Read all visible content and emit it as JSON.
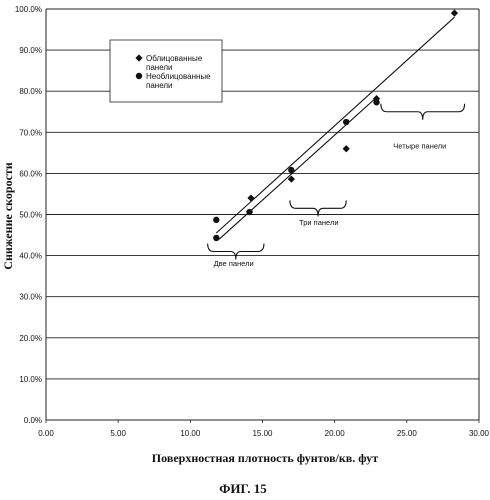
{
  "chart_data": {
    "type": "scatter",
    "xlabel": "Поверхностная плотность фунтов/кв. фут",
    "ylabel": "Снижение скорости",
    "xlim": [
      0,
      30
    ],
    "ylim": [
      0,
      100
    ],
    "x_ticks": [
      "0.00",
      "5.00",
      "10.00",
      "15.00",
      "20.00",
      "25.00",
      "30.00"
    ],
    "y_ticks": [
      "0.0%",
      "10.0%",
      "20.0%",
      "30.0%",
      "40.0%",
      "50.0%",
      "60.0%",
      "70.0%",
      "80.0%",
      "90.0%",
      "100.0%"
    ],
    "grid": "horizontal",
    "legend_position": "top-left",
    "series": [
      {
        "name": "Облицованные панели",
        "marker": "diamond",
        "points": [
          {
            "x": 14.2,
            "y": 54.0
          },
          {
            "x": 17.0,
            "y": 58.6
          },
          {
            "x": 20.8,
            "y": 66.0
          },
          {
            "x": 22.9,
            "y": 78.2
          },
          {
            "x": 28.3,
            "y": 99.0
          }
        ]
      },
      {
        "name": "Необлицованные панели",
        "marker": "circle",
        "points": [
          {
            "x": 11.8,
            "y": 48.7
          },
          {
            "x": 11.8,
            "y": 44.3
          },
          {
            "x": 14.1,
            "y": 50.6
          },
          {
            "x": 17.0,
            "y": 60.8
          },
          {
            "x": 20.8,
            "y": 72.5
          },
          {
            "x": 22.9,
            "y": 77.3
          }
        ]
      }
    ],
    "trendlines": [
      {
        "x": [
          11.8,
          28.3
        ],
        "y": [
          45.5,
          98.0
        ]
      },
      {
        "x": [
          12.0,
          22.9
        ],
        "y": [
          44.0,
          78.5
        ]
      }
    ],
    "annotations": [
      {
        "text": "Две панели",
        "x": 13.0,
        "y": 37.5
      },
      {
        "text": "Три панели",
        "x": 18.9,
        "y": 47.5
      },
      {
        "text": "Четыре панели",
        "x": 25.9,
        "y": 66.0
      }
    ],
    "brackets": [
      {
        "x1": 11.2,
        "x2": 15.1,
        "y": 41.0
      },
      {
        "x1": 16.9,
        "x2": 20.8,
        "y": 51.5
      },
      {
        "x1": 23.2,
        "x2": 29.0,
        "y": 75.0
      }
    ]
  },
  "figure_label": "ФИГ. 15",
  "legend": {
    "entries": [
      {
        "label_line1": "Облицованные",
        "label_line2": "панели",
        "marker": "diamond"
      },
      {
        "label_line1": "Необлицованные",
        "label_line2": "панели",
        "marker": "circle"
      }
    ]
  }
}
